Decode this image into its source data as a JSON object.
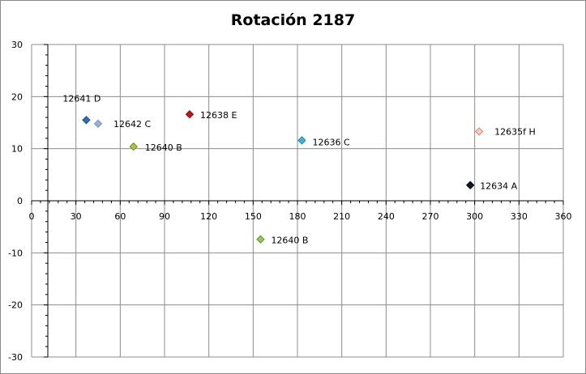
{
  "chart_data": {
    "type": "scatter",
    "title": "Rotación 2187",
    "xlabel": "",
    "ylabel": "",
    "xlim": [
      0,
      360
    ],
    "ylim": [
      -30,
      30
    ],
    "x_ticks": [
      0,
      30,
      60,
      90,
      120,
      150,
      180,
      210,
      240,
      270,
      300,
      330,
      360
    ],
    "y_ticks": [
      -30,
      -20,
      -10,
      0,
      10,
      20,
      30
    ],
    "grid": true,
    "legend": "none",
    "points": [
      {
        "label": "12641 D",
        "x": 37,
        "y": 15.5,
        "color": "#2e6fb5",
        "edge": "#1f4f8a"
      },
      {
        "label": "12642 C",
        "x": 45,
        "y": 14.8,
        "color": "#9ab3d6",
        "edge": "#7a93b6"
      },
      {
        "label": "12640 B",
        "x": 69,
        "y": 10.4,
        "color": "#a8c83c",
        "edge": "#6f8a20"
      },
      {
        "label": "12638 E",
        "x": 107,
        "y": 16.6,
        "color": "#c0141c",
        "edge": "#8a0a10"
      },
      {
        "label": "12636 C",
        "x": 183,
        "y": 11.6,
        "color": "#38b8d8",
        "edge": "#1f8aa8"
      },
      {
        "label": "12640 B",
        "x": 155,
        "y": -7.4,
        "color": "#8fc860",
        "edge": "#5f9a34"
      },
      {
        "label": "12635f  H",
        "x": 303,
        "y": 13.3,
        "color": "#fbd2c2",
        "edge": "#e07e5e"
      },
      {
        "label": "12634 A",
        "x": 297,
        "y": 3.0,
        "color": "#0a1a2e",
        "edge": "#000000"
      }
    ]
  }
}
